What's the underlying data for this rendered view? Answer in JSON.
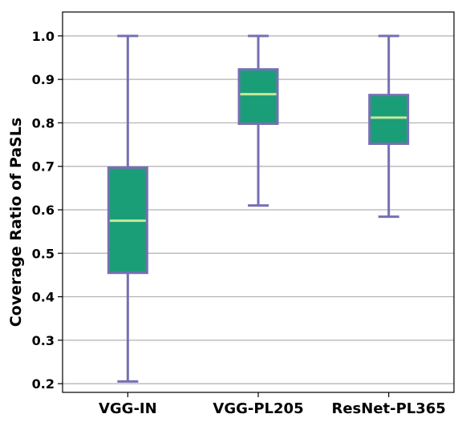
{
  "chart_data": {
    "type": "box",
    "title": "",
    "xlabel": "",
    "ylabel": "Coverage Ratio of PaSLs",
    "ylim": [
      0.18,
      1.055
    ],
    "yticks": [
      0.2,
      0.3,
      0.4,
      0.5,
      0.6,
      0.7,
      0.8,
      0.9,
      1.0
    ],
    "ytick_labels": [
      "0.2",
      "0.3",
      "0.4",
      "0.5",
      "0.6",
      "0.7",
      "0.8",
      "0.9",
      "1.0"
    ],
    "grid": "horizontal",
    "categories": [
      "VGG-IN",
      "VGG-PL205",
      "ResNet-PL365"
    ],
    "boxes": [
      {
        "category": "VGG-IN",
        "whisker_low": 0.205,
        "q1": 0.455,
        "median": 0.575,
        "q3": 0.697,
        "whisker_high": 1.0
      },
      {
        "category": "VGG-PL205",
        "whisker_low": 0.61,
        "q1": 0.798,
        "median": 0.866,
        "q3": 0.923,
        "whisker_high": 1.0
      },
      {
        "category": "ResNet-PL365",
        "whisker_low": 0.584,
        "q1": 0.752,
        "median": 0.812,
        "q3": 0.864,
        "whisker_high": 1.0
      }
    ],
    "colors": {
      "box_fill": "#1a9e77",
      "box_edge": "#7570b3",
      "median": "#c7e89b",
      "whisker": "#7570b3",
      "grid": "#b0b0b0",
      "axis": "#000000"
    }
  }
}
